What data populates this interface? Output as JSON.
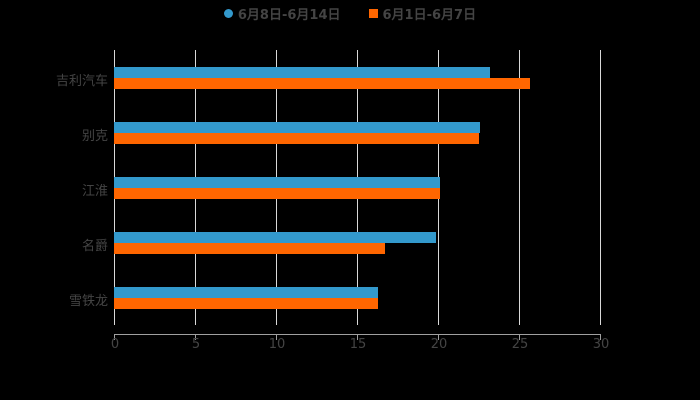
{
  "chart_data": {
    "type": "bar",
    "orientation": "horizontal",
    "title": "",
    "xlabel": "",
    "ylabel": "",
    "categories": [
      "吉利汽车",
      "别克",
      "江淮",
      "名爵",
      "雪铁龙"
    ],
    "series": [
      {
        "name": "6月8日-6月14日",
        "color": "#3399cc",
        "values": [
          23.2,
          22.6,
          20.1,
          19.9,
          16.3
        ]
      },
      {
        "name": "6月1日-6月7日",
        "color": "#ff6600",
        "values": [
          25.7,
          22.5,
          20.1,
          16.7,
          16.3
        ]
      }
    ],
    "xlim": [
      0,
      30
    ],
    "xticks": [
      "0",
      "5",
      "10",
      "15",
      "20",
      "25",
      "30"
    ],
    "grid": true,
    "legend_position": "top"
  },
  "legend": {
    "series1": "6月8日-6月14日",
    "series2": "6月1日-6月7日"
  },
  "colors": {
    "series1": "#3399cc",
    "series2": "#ff6600",
    "background": "#000000",
    "text": "#444444",
    "grid": "#d9d9d9"
  }
}
